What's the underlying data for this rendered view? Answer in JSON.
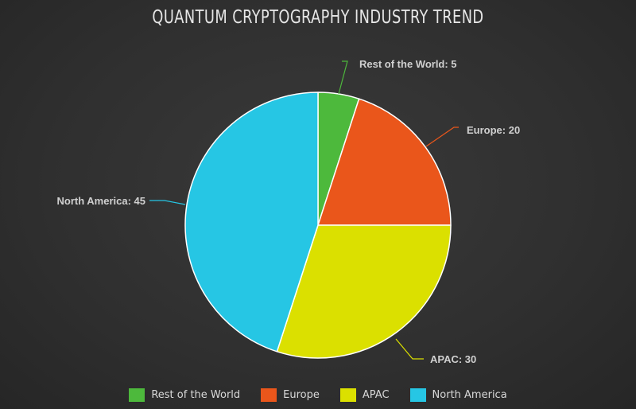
{
  "chart_data": {
    "type": "pie",
    "title": "QUANTUM CRYPTOGRAPHY INDUSTRY TREND",
    "categories": [
      "Rest of the World",
      "Europe",
      "APAC",
      "North America"
    ],
    "values": [
      5,
      20,
      30,
      45
    ],
    "colors": [
      "#4db93c",
      "#ea561b",
      "#dbe000",
      "#26c6e4"
    ],
    "slice_labels": [
      "Rest of the World: 5",
      "Europe: 20",
      "APAC: 30",
      "North America: 45"
    ],
    "legend": {
      "position": "bottom",
      "labels": [
        "Rest of the World",
        "Europe",
        "APAC",
        "North America"
      ]
    },
    "start_angle": "12 o'clock",
    "direction": "clockwise"
  }
}
